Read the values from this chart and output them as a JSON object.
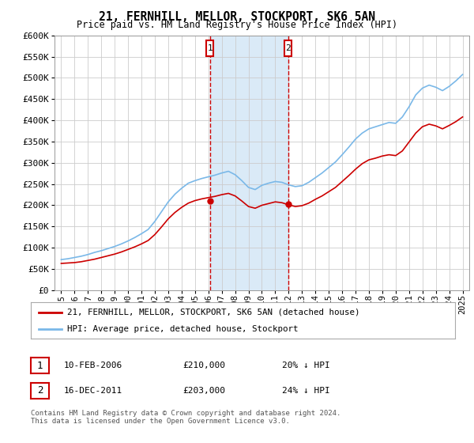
{
  "title": "21, FERNHILL, MELLOR, STOCKPORT, SK6 5AN",
  "subtitle": "Price paid vs. HM Land Registry's House Price Index (HPI)",
  "legend_line1": "21, FERNHILL, MELLOR, STOCKPORT, SK6 5AN (detached house)",
  "legend_line2": "HPI: Average price, detached house, Stockport",
  "annotation1": {
    "label": "1",
    "date_yr": 2006.115,
    "price": 210000,
    "note": "10-FEB-2006",
    "amount": "£210,000",
    "pct": "20% ↓ HPI"
  },
  "annotation2": {
    "label": "2",
    "date_yr": 2011.959,
    "price": 203000,
    "note": "16-DEC-2011",
    "amount": "£203,000",
    "pct": "24% ↓ HPI"
  },
  "footnote": "Contains HM Land Registry data © Crown copyright and database right 2024.\nThis data is licensed under the Open Government Licence v3.0.",
  "hpi_color": "#7ab8e8",
  "price_color": "#cc0000",
  "ylim": [
    0,
    600000
  ],
  "yticks": [
    0,
    50000,
    100000,
    150000,
    200000,
    250000,
    300000,
    350000,
    400000,
    450000,
    500000,
    550000,
    600000
  ],
  "background_color": "#ffffff",
  "grid_color": "#cccccc",
  "highlight_fill": "#daeaf7",
  "hpi_years": [
    1995.0,
    1995.5,
    1996.0,
    1996.5,
    1997.0,
    1997.5,
    1998.0,
    1998.5,
    1999.0,
    1999.5,
    2000.0,
    2000.5,
    2001.0,
    2001.5,
    2002.0,
    2002.5,
    2003.0,
    2003.5,
    2004.0,
    2004.5,
    2005.0,
    2005.5,
    2006.0,
    2006.5,
    2007.0,
    2007.5,
    2008.0,
    2008.5,
    2009.0,
    2009.5,
    2010.0,
    2010.5,
    2011.0,
    2011.5,
    2012.0,
    2012.5,
    2013.0,
    2013.5,
    2014.0,
    2014.5,
    2015.0,
    2015.5,
    2016.0,
    2016.5,
    2017.0,
    2017.5,
    2018.0,
    2018.5,
    2019.0,
    2019.5,
    2020.0,
    2020.5,
    2021.0,
    2021.5,
    2022.0,
    2022.5,
    2023.0,
    2023.5,
    2024.0,
    2024.5,
    2025.0
  ],
  "hpi_values": [
    72000,
    74000,
    77000,
    80000,
    84000,
    89000,
    93000,
    98000,
    103000,
    109000,
    116000,
    124000,
    133000,
    143000,
    162000,
    185000,
    208000,
    226000,
    240000,
    252000,
    258000,
    263000,
    267000,
    271000,
    276000,
    280000,
    272000,
    258000,
    242000,
    237000,
    247000,
    252000,
    256000,
    254000,
    248000,
    244000,
    246000,
    254000,
    265000,
    276000,
    289000,
    302000,
    319000,
    337000,
    356000,
    370000,
    380000,
    385000,
    390000,
    395000,
    393000,
    408000,
    432000,
    460000,
    476000,
    483000,
    478000,
    470000,
    480000,
    493000,
    508000
  ],
  "price_values": [
    63000,
    64000,
    65000,
    67000,
    70000,
    73000,
    77000,
    81000,
    85000,
    90000,
    96000,
    102000,
    109000,
    117000,
    131000,
    149000,
    168000,
    183000,
    195000,
    205000,
    211000,
    215000,
    218000,
    221000,
    225000,
    228000,
    222000,
    210000,
    197000,
    193000,
    200000,
    204000,
    208000,
    206000,
    201000,
    197000,
    199000,
    205000,
    214000,
    222000,
    232000,
    242000,
    256000,
    270000,
    285000,
    298000,
    307000,
    311000,
    316000,
    319000,
    317000,
    328000,
    349000,
    370000,
    385000,
    391000,
    387000,
    380000,
    388000,
    397000,
    408000
  ],
  "xlim": [
    1994.5,
    2025.5
  ],
  "xticks": [
    1995,
    1996,
    1997,
    1998,
    1999,
    2000,
    2001,
    2002,
    2003,
    2004,
    2005,
    2006,
    2007,
    2008,
    2009,
    2010,
    2011,
    2012,
    2013,
    2014,
    2015,
    2016,
    2017,
    2018,
    2019,
    2020,
    2021,
    2022,
    2023,
    2024,
    2025
  ]
}
